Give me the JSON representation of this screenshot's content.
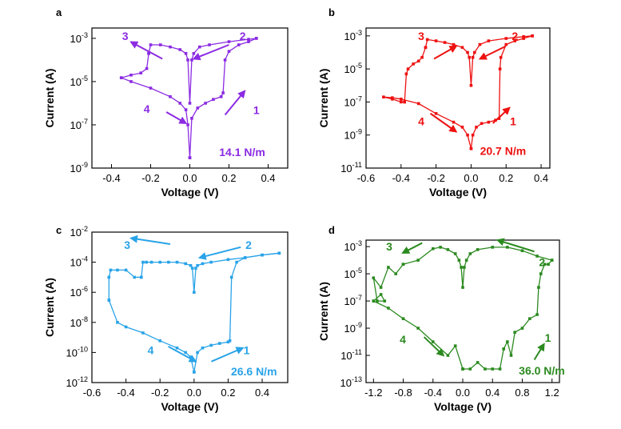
{
  "chart_data": [
    {
      "panel": "a",
      "type": "line",
      "log_y": true,
      "xlabel": "Voltage (V)",
      "ylabel": "Current (A)",
      "xlim": [
        -0.5,
        0.5
      ],
      "ylim": [
        1e-09,
        0.003
      ],
      "x_ticks": [
        -0.4,
        -0.2,
        0.0,
        0.2,
        0.4
      ],
      "x_tick_labels": [
        "-0.4",
        "-0.2",
        "0.0",
        "0.2",
        "0.4"
      ],
      "y_tick_exponents": [
        -9,
        -7,
        -5,
        -3
      ],
      "y_tick_base": "10",
      "color": "#8B2BE2",
      "tension_label": "14.1 N/m",
      "arrow_labels": [
        "1",
        "2",
        "3",
        "4"
      ],
      "series": [
        {
          "x": [
            0.0,
            0.01,
            0.04,
            0.08,
            0.12,
            0.16,
            0.17,
            0.18,
            0.2,
            0.25,
            0.3,
            0.34
          ],
          "y": [
            3e-09,
            2e-07,
            6e-07,
            1e-06,
            1.5e-06,
            2e-06,
            3e-06,
            0.0001,
            0.00025,
            0.0005,
            0.0007,
            0.001
          ]
        },
        {
          "x": [
            0.34,
            0.3,
            0.2,
            0.1,
            0.05,
            0.02,
            0.01,
            0.0,
            -0.01,
            -0.02,
            -0.05,
            -0.1,
            -0.15,
            -0.2,
            -0.21
          ],
          "y": [
            0.001,
            0.0009,
            0.0007,
            0.0005,
            0.0004,
            0.0002,
            0.0001,
            1e-06,
            0.0001,
            0.0002,
            0.0003,
            0.0004,
            0.0005,
            0.0005,
            0.0002
          ]
        },
        {
          "x": [
            -0.21,
            -0.22,
            -0.25,
            -0.3,
            -0.35
          ],
          "y": [
            0.0002,
            4e-05,
            2.5e-05,
            2e-05,
            1.5e-05
          ]
        },
        {
          "x": [
            -0.35,
            -0.3,
            -0.2,
            -0.1,
            -0.05,
            -0.02,
            -0.01,
            0.0
          ],
          "y": [
            1.5e-05,
            1e-05,
            5e-06,
            2e-06,
            1e-06,
            5e-07,
            1e-07,
            3e-09
          ]
        }
      ]
    },
    {
      "panel": "b",
      "type": "line",
      "log_y": true,
      "xlabel": "Voltage (V)",
      "ylabel": "Current (A)",
      "xlim": [
        -0.6,
        0.45
      ],
      "ylim": [
        1e-11,
        0.003
      ],
      "x_ticks": [
        -0.6,
        -0.4,
        -0.2,
        0.0,
        0.2,
        0.4
      ],
      "x_tick_labels": [
        "-0.6",
        "-0.4",
        "-0.2",
        "0.0",
        "0.2",
        "0.4"
      ],
      "y_tick_exponents": [
        -11,
        -9,
        -7,
        -5,
        -3
      ],
      "y_tick_base": "10",
      "color": "#EE1111",
      "tension_label": "20.7 N/m",
      "arrow_labels": [
        "1",
        "2",
        "3",
        "4"
      ],
      "series": [
        {
          "x": [
            0.0,
            0.01,
            0.03,
            0.06,
            0.1,
            0.14,
            0.16,
            0.165,
            0.17,
            0.2,
            0.25,
            0.3,
            0.35
          ],
          "y": [
            1.5e-10,
            1e-09,
            3e-09,
            5e-09,
            6e-09,
            8e-09,
            1e-08,
            1e-05,
            5e-05,
            0.0003,
            0.0005,
            0.0007,
            0.001
          ]
        },
        {
          "x": [
            0.35,
            0.3,
            0.2,
            0.1,
            0.05,
            0.02,
            0.01,
            0.0,
            -0.01,
            -0.02,
            -0.05,
            -0.1,
            -0.15,
            -0.2,
            -0.25,
            -0.26
          ],
          "y": [
            0.001,
            0.0009,
            0.0007,
            0.0005,
            0.0003,
            0.0001,
            5e-05,
            1e-06,
            5e-05,
            0.0001,
            0.0002,
            0.0003,
            0.0004,
            0.0005,
            0.0006,
            0.0002
          ]
        },
        {
          "x": [
            -0.26,
            -0.28,
            -0.3,
            -0.33,
            -0.36,
            -0.37,
            -0.38
          ],
          "y": [
            0.0002,
            5e-05,
            3e-05,
            2e-05,
            1e-05,
            5e-06,
            1e-07
          ]
        },
        {
          "x": [
            -0.38,
            -0.4,
            -0.45,
            -0.5,
            -0.45,
            -0.4,
            -0.3,
            -0.2,
            -0.1,
            -0.05,
            -0.02,
            0.0
          ],
          "y": [
            1e-07,
            1e-07,
            1.5e-07,
            2e-07,
            1.8e-07,
            1.5e-07,
            8e-08,
            2e-08,
            6e-09,
            3e-09,
            1e-09,
            1.5e-10
          ]
        }
      ]
    },
    {
      "panel": "c",
      "type": "line",
      "log_y": true,
      "xlabel": "Voltage (V)",
      "ylabel": "Current (A)",
      "xlim": [
        -0.6,
        0.55
      ],
      "ylim": [
        1e-12,
        0.01
      ],
      "x_ticks": [
        -0.6,
        -0.4,
        -0.2,
        0.0,
        0.2,
        0.4
      ],
      "x_tick_labels": [
        "-0.6",
        "-0.4",
        "-0.2",
        "0.0",
        "0.2",
        "0.4"
      ],
      "y_tick_exponents": [
        -12,
        -10,
        -8,
        -6,
        -4,
        -2
      ],
      "y_tick_base": "10",
      "color": "#29A3E8",
      "tension_label": "26.6 N/m",
      "arrow_labels": [
        "1",
        "2",
        "3",
        "4"
      ],
      "series": [
        {
          "x": [
            0.0,
            0.02,
            0.05,
            0.1,
            0.15,
            0.2,
            0.21,
            0.22,
            0.25,
            0.3,
            0.4,
            0.5
          ],
          "y": [
            5e-12,
            1e-10,
            2e-10,
            3e-10,
            4e-10,
            5e-10,
            6e-10,
            1e-05,
            0.0001,
            0.0002,
            0.0003,
            0.0004
          ]
        },
        {
          "x": [
            0.5,
            0.4,
            0.3,
            0.2,
            0.1,
            0.05,
            0.02,
            0.01,
            0.0,
            -0.01,
            -0.02,
            -0.05,
            -0.1,
            -0.15,
            -0.2,
            -0.25,
            -0.28,
            -0.3,
            -0.31
          ],
          "y": [
            0.0004,
            0.0003,
            0.0002,
            0.00015,
            0.0001,
            8e-05,
            6e-05,
            4e-05,
            1e-06,
            4e-05,
            6e-05,
            8e-05,
            0.0001,
            0.0001,
            0.0001,
            0.0001,
            0.0001,
            0.0001,
            1e-05
          ]
        },
        {
          "x": [
            -0.31,
            -0.35,
            -0.4,
            -0.45,
            -0.49,
            -0.5,
            -0.5
          ],
          "y": [
            1e-05,
            1e-05,
            3e-05,
            3e-05,
            3e-05,
            1e-05,
            3e-07
          ]
        },
        {
          "x": [
            -0.5,
            -0.45,
            -0.4,
            -0.3,
            -0.2,
            -0.1,
            -0.05,
            -0.02,
            0.0
          ],
          "y": [
            3e-07,
            1e-08,
            5e-09,
            2e-09,
            6e-10,
            2e-10,
            1e-10,
            5e-11,
            5e-12
          ]
        }
      ]
    },
    {
      "panel": "d",
      "type": "line",
      "log_y": true,
      "xlabel": "Voltage (V)",
      "ylabel": "Current (A)",
      "xlim": [
        -1.3,
        1.3
      ],
      "ylim": [
        1e-13,
        0.003
      ],
      "x_ticks": [
        -1.2,
        -0.8,
        -0.4,
        0.0,
        0.4,
        0.8,
        1.2
      ],
      "x_tick_labels": [
        "-1.2",
        "-0.8",
        "-0.4",
        "0.0",
        "0.4",
        "0.8",
        "1.2"
      ],
      "y_tick_exponents": [
        -13,
        -11,
        -9,
        -7,
        -5,
        -3
      ],
      "y_tick_base": "10",
      "color": "#2B8A1F",
      "tension_label": "36.0 N/m",
      "arrow_labels": [
        "1",
        "2",
        "3",
        "4"
      ],
      "series": [
        {
          "x": [
            0.0,
            0.1,
            0.2,
            0.3,
            0.4,
            0.5,
            0.55,
            0.6,
            0.65,
            0.7,
            0.8,
            0.9,
            1.0,
            1.02,
            1.05,
            1.1,
            1.15,
            1.2
          ],
          "y": [
            1e-12,
            1e-12,
            3e-12,
            1e-12,
            1e-12,
            1e-12,
            3e-11,
            1e-10,
            1e-11,
            5e-10,
            1e-09,
            5e-09,
            1e-08,
            1e-06,
            1e-05,
            5e-05,
            5e-05,
            0.0001
          ]
        },
        {
          "x": [
            1.2,
            1.0,
            0.8,
            0.6,
            0.4,
            0.2,
            0.1,
            0.05,
            0.02,
            0.0,
            -0.02,
            -0.05,
            -0.1,
            -0.2,
            -0.3,
            -0.4,
            -0.6,
            -0.8
          ],
          "y": [
            0.0001,
            0.0002,
            0.0005,
            0.0009,
            0.0009,
            0.0006,
            0.0003,
            0.0001,
            3e-05,
            1e-06,
            3e-05,
            0.0001,
            0.0003,
            0.0006,
            0.0009,
            0.0007,
            0.0001,
            5e-05
          ]
        },
        {
          "x": [
            -0.8,
            -0.9,
            -1.0,
            -1.1,
            -1.2,
            -1.15,
            -1.05,
            -1.1,
            -1.2
          ],
          "y": [
            5e-05,
            1e-05,
            3e-05,
            1e-06,
            5e-06,
            1e-07,
            1e-07,
            3e-07,
            1e-07
          ]
        },
        {
          "x": [
            -1.2,
            -1.0,
            -0.8,
            -0.6,
            -0.4,
            -0.2,
            -0.1,
            0.0
          ],
          "y": [
            1e-07,
            3e-08,
            5e-09,
            1e-09,
            1e-10,
            1e-11,
            5e-11,
            1e-12
          ]
        }
      ]
    }
  ]
}
